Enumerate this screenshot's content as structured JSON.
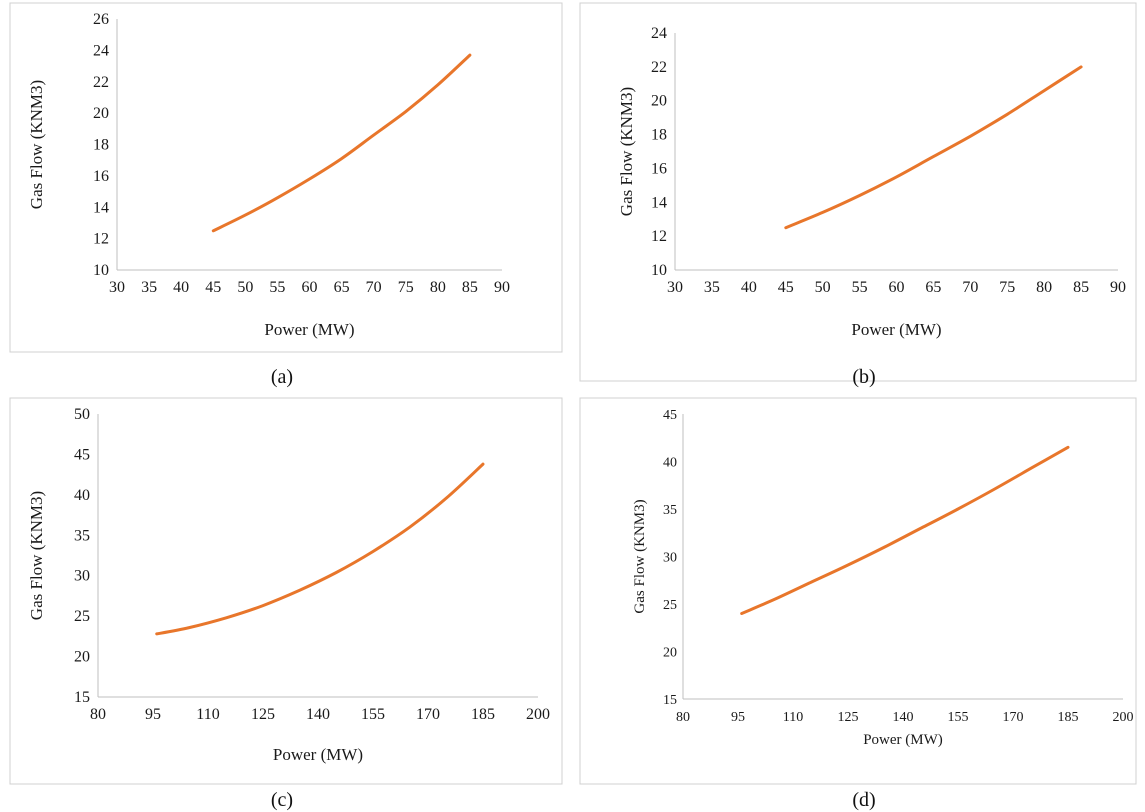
{
  "colors": {
    "series": "#e8762b",
    "axis": "#bfbfbf",
    "text": "#1a1a1a"
  },
  "chart_data": [
    {
      "type": "line",
      "caption": "(a)",
      "xlabel": "Power (MW)",
      "ylabel": "Gas Flow (KNM3)",
      "xlim": [
        30,
        90
      ],
      "ylim": [
        10,
        26
      ],
      "xticks": [
        30,
        35,
        40,
        45,
        50,
        55,
        60,
        65,
        70,
        75,
        80,
        85,
        90
      ],
      "yticks": [
        10,
        12,
        14,
        16,
        18,
        20,
        22,
        24,
        26
      ],
      "grid": false,
      "series": [
        {
          "x": [
            45,
            50,
            55,
            60,
            65,
            70,
            75,
            80,
            85
          ],
          "y": [
            12.5,
            13.5,
            14.6,
            15.8,
            17.1,
            18.6,
            20.1,
            21.8,
            23.7
          ]
        }
      ]
    },
    {
      "type": "line",
      "caption": "(b)",
      "xlabel": "Power (MW)",
      "ylabel": "Gas Flow (KNM3)",
      "xlim": [
        30,
        90
      ],
      "ylim": [
        10,
        24
      ],
      "xticks": [
        30,
        35,
        40,
        45,
        50,
        55,
        60,
        65,
        70,
        75,
        80,
        85,
        90
      ],
      "yticks": [
        10,
        12,
        14,
        16,
        18,
        20,
        22,
        24
      ],
      "grid": false,
      "series": [
        {
          "x": [
            45,
            50,
            55,
            60,
            65,
            70,
            75,
            80,
            85
          ],
          "y": [
            12.5,
            13.4,
            14.4,
            15.5,
            16.7,
            17.9,
            19.2,
            20.6,
            22.0
          ]
        }
      ]
    },
    {
      "type": "line",
      "caption": "(c)",
      "xlabel": "Power (MW)",
      "ylabel": "Gas Flow (KNM3)",
      "xlim": [
        80,
        200
      ],
      "ylim": [
        15,
        50
      ],
      "xticks": [
        80,
        95,
        110,
        125,
        140,
        155,
        170,
        185,
        200
      ],
      "yticks": [
        15,
        20,
        25,
        30,
        35,
        40,
        45,
        50
      ],
      "grid": false,
      "series": [
        {
          "x": [
            96,
            105,
            115,
            125,
            135,
            145,
            155,
            165,
            175,
            185
          ],
          "y": [
            22.8,
            23.6,
            24.8,
            26.3,
            28.2,
            30.4,
            33.0,
            36.0,
            39.6,
            43.8
          ]
        }
      ]
    },
    {
      "type": "line",
      "caption": "(d)",
      "xlabel": "Power (MW)",
      "ylabel": "Gas Flow (KNM3)",
      "xlim": [
        80,
        200
      ],
      "ylim": [
        15,
        45
      ],
      "xticks": [
        80,
        95,
        110,
        125,
        140,
        155,
        170,
        185,
        200
      ],
      "yticks": [
        15,
        20,
        25,
        30,
        35,
        40,
        45
      ],
      "grid": false,
      "series": [
        {
          "x": [
            96,
            105,
            115,
            125,
            135,
            145,
            155,
            165,
            175,
            185
          ],
          "y": [
            24.0,
            25.5,
            27.3,
            29.1,
            31.0,
            33.0,
            35.0,
            37.1,
            39.3,
            41.5
          ]
        }
      ]
    }
  ]
}
